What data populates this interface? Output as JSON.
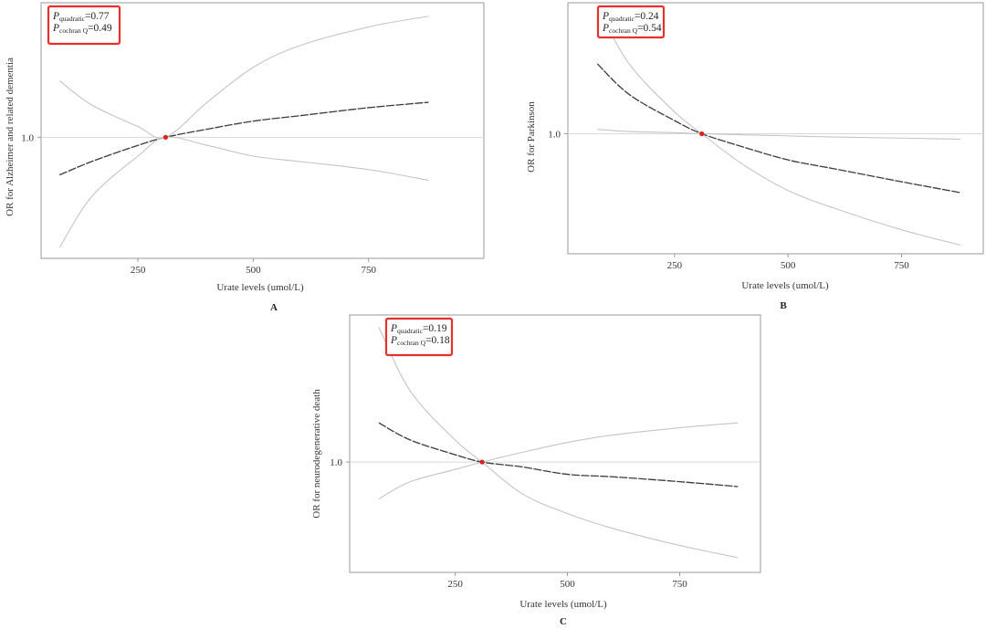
{
  "chart_data": [
    {
      "id": "A",
      "type": "line",
      "panel_label": "A",
      "xlabel": "Urate levels (umol/L)",
      "ylabel": "OR for Alzheimer and related dementia",
      "xticks": [
        250,
        500,
        750
      ],
      "yticks": [
        1.0
      ],
      "ytick_labels": [
        "1.0"
      ],
      "xlim": [
        40,
        1000
      ],
      "ylim": [
        0.55,
        1.5
      ],
      "reference": {
        "x": 310,
        "y": 1.0
      },
      "annotation": {
        "p1_label": "P",
        "p1_sub": "quadratic",
        "p1_value": "=0.77",
        "p2_label": "P",
        "p2_sub": "cochran Q",
        "p2_value": "=0.49"
      },
      "series": [
        {
          "role": "estimate",
          "x": [
            80,
            150,
            250,
            310,
            400,
            500,
            600,
            750,
            880
          ],
          "y": [
            0.86,
            0.91,
            0.97,
            1.0,
            1.03,
            1.06,
            1.08,
            1.11,
            1.13
          ]
        },
        {
          "role": "ci_upper",
          "x": [
            80,
            150,
            250,
            310,
            400,
            500,
            600,
            750,
            880
          ],
          "y": [
            1.21,
            1.12,
            1.04,
            1.0,
            1.13,
            1.26,
            1.34,
            1.41,
            1.45
          ]
        },
        {
          "role": "ci_lower",
          "x": [
            80,
            150,
            250,
            310,
            400,
            500,
            600,
            750,
            880
          ],
          "y": [
            0.59,
            0.78,
            0.93,
            1.0,
            0.97,
            0.93,
            0.91,
            0.88,
            0.84
          ]
        }
      ]
    },
    {
      "id": "B",
      "type": "line",
      "panel_label": "B",
      "xlabel": "Urate levels (umol/L)",
      "ylabel": "OR for Parkinson",
      "xticks": [
        250,
        500,
        750
      ],
      "yticks": [
        1.0
      ],
      "ytick_labels": [
        "1.0"
      ],
      "xlim": [
        15,
        930
      ],
      "ylim": [
        0.45,
        1.6
      ],
      "reference": {
        "x": 310,
        "y": 1.0
      },
      "annotation": {
        "p1_label": "P",
        "p1_sub": "quadratic",
        "p1_value": "=0.24",
        "p2_label": "P",
        "p2_sub": "cochran Q",
        "p2_value": "=0.54"
      },
      "series": [
        {
          "role": "estimate",
          "x": [
            80,
            150,
            250,
            310,
            400,
            500,
            600,
            750,
            880
          ],
          "y": [
            1.32,
            1.18,
            1.06,
            1.0,
            0.94,
            0.88,
            0.84,
            0.78,
            0.73
          ]
        },
        {
          "role": "ci_upper",
          "x": [
            80,
            150,
            250,
            310,
            400,
            500,
            600,
            750,
            880
          ],
          "y": [
            1.58,
            1.32,
            1.1,
            1.0,
            0.86,
            0.74,
            0.66,
            0.56,
            0.49
          ]
        },
        {
          "role": "ci_lower",
          "x": [
            80,
            150,
            250,
            310,
            400,
            500,
            600,
            750,
            880
          ],
          "y": [
            1.02,
            1.01,
            1.005,
            1.0,
            0.995,
            0.99,
            0.985,
            0.98,
            0.975
          ]
        }
      ]
    },
    {
      "id": "C",
      "type": "line",
      "panel_label": "C",
      "xlabel": "Urate levels (umol/L)",
      "ylabel": "OR for neurodegenerative death",
      "xticks": [
        250,
        500,
        750
      ],
      "yticks": [
        1.0
      ],
      "ytick_labels": [
        "1.0"
      ],
      "xlim": [
        15,
        930
      ],
      "ylim": [
        0.55,
        1.6
      ],
      "reference": {
        "x": 310,
        "y": 1.0
      },
      "annotation": {
        "p1_label": "P",
        "p1_sub": "quadratic",
        "p1_value": "=0.19",
        "p2_label": "P",
        "p2_sub": "cochran Q",
        "p2_value": "=0.18"
      },
      "series": [
        {
          "role": "estimate",
          "x": [
            80,
            150,
            250,
            310,
            400,
            500,
            600,
            750,
            880
          ],
          "y": [
            1.16,
            1.09,
            1.03,
            1.0,
            0.98,
            0.95,
            0.94,
            0.92,
            0.9
          ]
        },
        {
          "role": "ci_upper",
          "x": [
            80,
            150,
            250,
            310,
            400,
            500,
            600,
            750,
            880
          ],
          "y": [
            1.55,
            1.29,
            1.09,
            1.0,
            0.87,
            0.79,
            0.73,
            0.66,
            0.61
          ]
        },
        {
          "role": "ci_lower",
          "x": [
            80,
            150,
            250,
            310,
            400,
            500,
            600,
            750,
            880
          ],
          "y": [
            0.85,
            0.92,
            0.97,
            1.0,
            1.04,
            1.08,
            1.11,
            1.14,
            1.16
          ]
        }
      ]
    }
  ]
}
